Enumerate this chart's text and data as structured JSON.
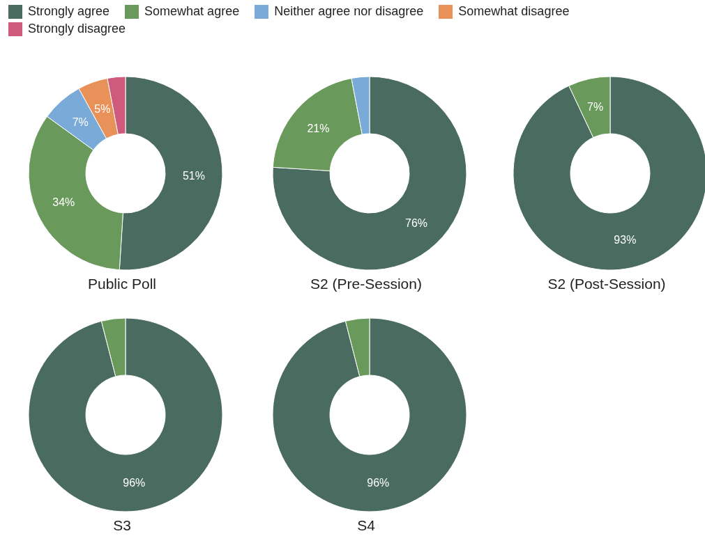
{
  "chart_data": [
    {
      "type": "donut",
      "title": "Public Poll",
      "categories": [
        "Strongly agree",
        "Somewhat agree",
        "Neither agree nor disagree",
        "Somewhat disagree",
        "Strongly disagree"
      ],
      "values": [
        51,
        34,
        7,
        5,
        3
      ],
      "colors": [
        "#4a6b5f",
        "#6a9a5b",
        "#7aaad8",
        "#e8925a",
        "#cf5a7c"
      ],
      "value_labels": [
        "51%",
        "34%",
        "7%",
        "5%",
        null
      ],
      "legend": "top"
    },
    {
      "type": "donut",
      "title": "S2 (Pre-Session)",
      "categories": [
        null,
        null,
        null
      ],
      "values": [
        76,
        21,
        3
      ],
      "colors": [
        "#4a6b5f",
        "#6a9a5b",
        "#7aaad8"
      ],
      "value_labels": [
        "76%",
        "21%",
        null
      ]
    },
    {
      "type": "donut",
      "title": "S2 (Post-Session)",
      "categories": [
        null,
        null
      ],
      "values": [
        93,
        7
      ],
      "colors": [
        "#4a6b5f",
        "#6a9a5b"
      ],
      "value_labels": [
        "93%",
        "7%"
      ]
    },
    {
      "type": "donut",
      "title": "S3",
      "categories": [
        null,
        null
      ],
      "values": [
        96,
        4
      ],
      "colors": [
        "#4a6b5f",
        "#6a9a5b"
      ],
      "value_labels": [
        "96%",
        null
      ]
    },
    {
      "type": "donut",
      "title": "S4",
      "categories": [
        null,
        null
      ],
      "values": [
        96,
        4
      ],
      "colors": [
        "#4a6b5f",
        "#6a9a5b"
      ],
      "value_labels": [
        "96%",
        null
      ]
    }
  ]
}
